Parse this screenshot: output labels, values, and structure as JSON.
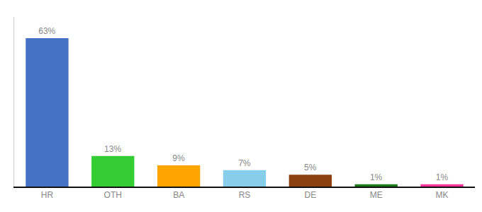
{
  "chart_data": {
    "type": "bar",
    "categories": [
      "HR",
      "OTH",
      "BA",
      "RS",
      "DE",
      "ME",
      "MK"
    ],
    "values": [
      63,
      13,
      9,
      7,
      5,
      1,
      1
    ],
    "value_labels": [
      "63%",
      "13%",
      "9%",
      "7%",
      "5%",
      "1%",
      "1%"
    ],
    "colors": [
      "#4472C4",
      "#33CC33",
      "#FFA500",
      "#87CEEB",
      "#8B4010",
      "#1A7A1A",
      "#FF3399"
    ],
    "ylim": [
      0,
      72
    ],
    "data_labels": true,
    "tick_labels": "x",
    "grid": false
  }
}
